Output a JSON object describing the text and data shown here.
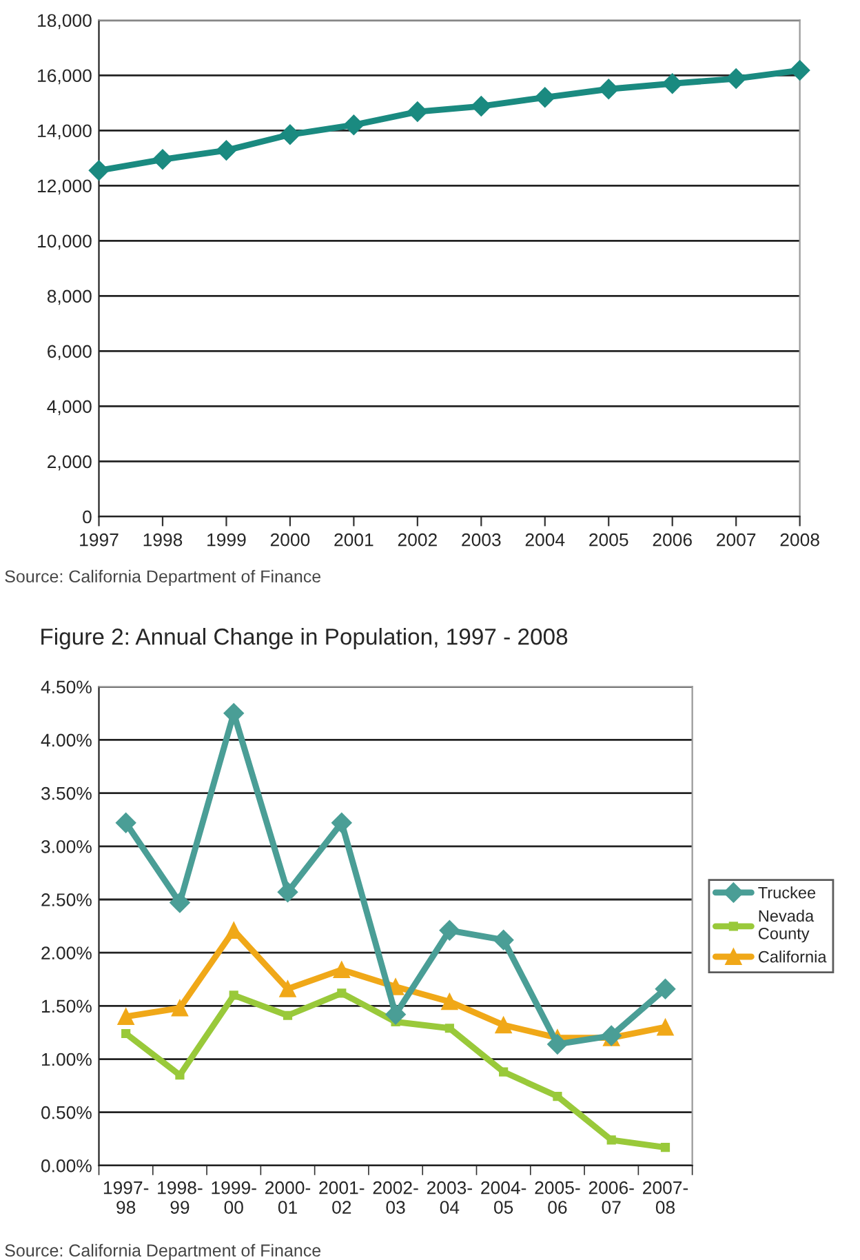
{
  "chart_data": [
    {
      "type": "line",
      "categories": [
        "1997",
        "1998",
        "1999",
        "2000",
        "2001",
        "2002",
        "2003",
        "2004",
        "2005",
        "2006",
        "2007",
        "2008"
      ],
      "series": [
        {
          "color": "#1a8a80",
          "marker": "diamond",
          "values": [
            12550,
            12950,
            13280,
            13850,
            14200,
            14680,
            14880,
            15200,
            15500,
            15700,
            15880,
            16180
          ]
        }
      ],
      "ylim": [
        0,
        18000
      ],
      "yticks": [
        0,
        {
          "value": 2000,
          "label": "2,000"
        },
        {
          "value": 4000,
          "label": "4,000"
        },
        {
          "value": 6000,
          "label": "6,000"
        },
        {
          "value": 8000,
          "label": "8,000"
        },
        {
          "value": 10000,
          "label": "10,000"
        },
        {
          "value": 12000,
          "label": "12,000"
        },
        {
          "value": 14000,
          "label": "14,000"
        },
        {
          "value": 16000,
          "label": "16,000"
        },
        {
          "value": 18000,
          "label": "18,000"
        }
      ],
      "grid": "y",
      "annotations": [
        "Source: California Department of Finance"
      ]
    },
    {
      "type": "line",
      "title": "Figure 2: Annual Change in Population, 1997 - 2008",
      "categories": [
        "1997-98",
        "1998-99",
        "1999-00",
        "2000-01",
        "2001-02",
        "2002-03",
        "2003-04",
        "2004-05",
        "2005-06",
        "2006-07",
        "2007-08"
      ],
      "series": [
        {
          "name": "Truckee",
          "color": "#4a9e96",
          "marker": "diamond",
          "values": [
            3.22,
            2.47,
            4.25,
            2.57,
            3.22,
            1.42,
            2.21,
            2.12,
            1.14,
            1.22,
            1.66
          ]
        },
        {
          "name": "Nevada County",
          "color": "#99c93a",
          "marker": "square",
          "values": [
            1.24,
            0.85,
            1.6,
            1.41,
            1.62,
            1.35,
            1.29,
            0.88,
            0.65,
            0.24,
            0.17
          ]
        },
        {
          "name": "California",
          "color": "#f0a818",
          "marker": "triangle",
          "values": [
            1.4,
            1.48,
            2.21,
            1.66,
            1.84,
            1.68,
            1.54,
            1.32,
            1.2,
            1.2,
            1.3
          ]
        }
      ],
      "ylim": [
        0,
        4.5
      ],
      "yticks": [
        {
          "value": 0,
          "label": "0.00%"
        },
        {
          "value": 0.5,
          "label": "0.50%"
        },
        {
          "value": 1.0,
          "label": "1.00%"
        },
        {
          "value": 1.5,
          "label": "1.50%"
        },
        {
          "value": 2.0,
          "label": "2.00%"
        },
        {
          "value": 2.5,
          "label": "2.50%"
        },
        {
          "value": 3.0,
          "label": "3.00%"
        },
        {
          "value": 3.5,
          "label": "3.50%"
        },
        {
          "value": 4.0,
          "label": "4.00%"
        },
        {
          "value": 4.5,
          "label": "4.50%"
        }
      ],
      "grid": "y",
      "legend": "right",
      "annotations": [
        "Source: California Department of Finance"
      ]
    }
  ]
}
